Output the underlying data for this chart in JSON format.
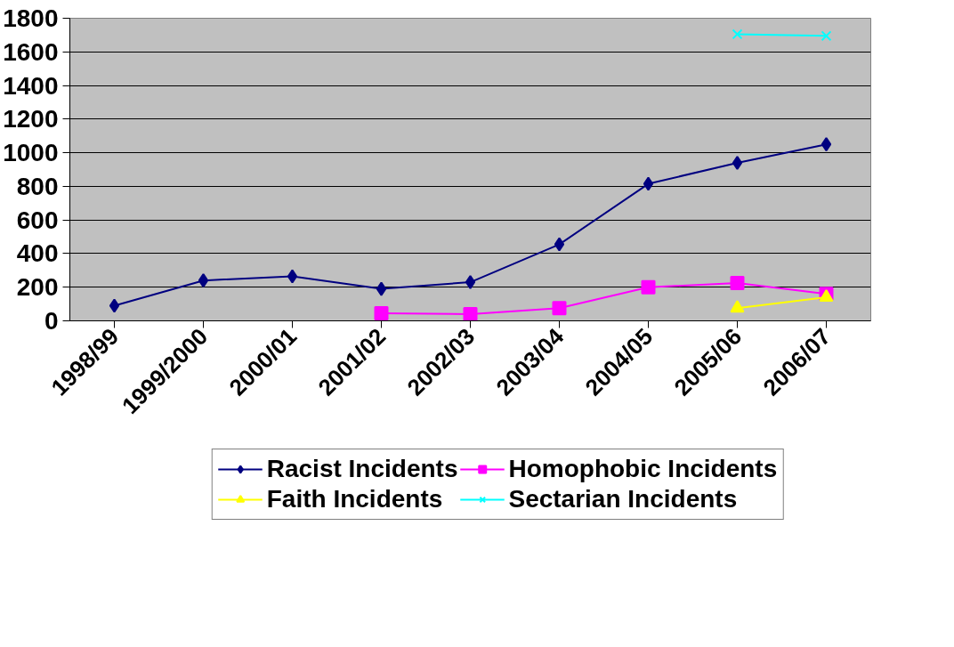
{
  "chart_data": {
    "type": "line",
    "categories": [
      "1998/99",
      "1999/2000",
      "2000/01",
      "2001/02",
      "2002/03",
      "2003/04",
      "2004/05",
      "2005/06",
      "2006/07"
    ],
    "series": [
      {
        "name": "Racist Incidents",
        "color": "#000080",
        "marker": "diamond",
        "values": [
          90,
          240,
          265,
          190,
          230,
          455,
          815,
          940,
          1050
        ]
      },
      {
        "name": "Homophobic Incidents",
        "color": "#ff00ff",
        "marker": "square",
        "values": [
          null,
          null,
          null,
          45,
          40,
          75,
          200,
          225,
          160
        ]
      },
      {
        "name": "Faith Incidents",
        "color": "#ffff00",
        "marker": "triangle",
        "values": [
          null,
          null,
          null,
          null,
          null,
          null,
          null,
          75,
          140
        ]
      },
      {
        "name": "Sectarian Incidents",
        "color": "#00ffff",
        "marker": "cross",
        "values": [
          null,
          null,
          null,
          null,
          null,
          null,
          null,
          1705,
          1695
        ]
      }
    ],
    "ylim": [
      0,
      1800
    ],
    "yticks": [
      0,
      200,
      400,
      600,
      800,
      1000,
      1200,
      1400,
      1600,
      1800
    ],
    "grid": "y",
    "legend": "bottom",
    "line_style": "solid"
  }
}
